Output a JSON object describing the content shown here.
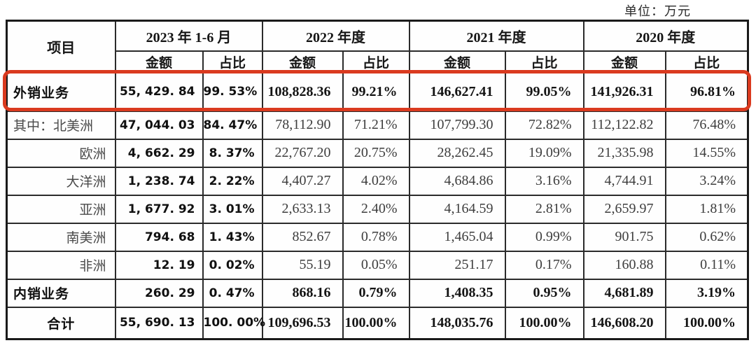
{
  "unit_label": "单位：万元",
  "annotation": {
    "color": "#da3a1f",
    "highlighted_row": "外销业务"
  },
  "table": {
    "item_header": "项目",
    "sub_headers": {
      "amount": "金额",
      "ratio": "占比"
    },
    "col_groups": [
      {
        "label": "2023 年 1-6 月"
      },
      {
        "label": "2022 年度"
      },
      {
        "label": "2021 年度"
      },
      {
        "label": "2020 年度"
      }
    ],
    "rows": [
      {
        "label": "外销业务",
        "label_align": "left",
        "style": "bold",
        "highlight": true,
        "values": [
          "55, 429. 84",
          "99. 53%",
          "108,828.36",
          "99.21%",
          "146,627.41",
          "99.05%",
          "141,926.31",
          "96.81%"
        ]
      },
      {
        "label": "其中：北美洲",
        "label_align": "left",
        "style": "regular",
        "values": [
          "47, 044. 03",
          "84. 47%",
          "78,112.90",
          "71.21%",
          "107,799.30",
          "72.82%",
          "112,122.82",
          "76.48%"
        ]
      },
      {
        "label": "欧洲",
        "label_align": "right",
        "style": "regular",
        "values": [
          "4, 662. 29",
          "8. 37%",
          "22,767.20",
          "20.75%",
          "28,262.45",
          "19.09%",
          "21,335.98",
          "14.55%"
        ]
      },
      {
        "label": "大洋洲",
        "label_align": "right",
        "style": "regular",
        "values": [
          "1, 238. 74",
          "2. 22%",
          "4,407.27",
          "4.02%",
          "4,684.86",
          "3.16%",
          "4,744.91",
          "3.24%"
        ]
      },
      {
        "label": "亚洲",
        "label_align": "right",
        "style": "regular",
        "values": [
          "1, 677. 92",
          "3. 01%",
          "2,633.13",
          "2.40%",
          "4,164.59",
          "2.81%",
          "2,659.97",
          "1.81%"
        ]
      },
      {
        "label": "南美洲",
        "label_align": "right",
        "style": "regular",
        "values": [
          "794. 68",
          "1. 43%",
          "852.67",
          "0.78%",
          "1,465.04",
          "0.99%",
          "901.75",
          "0.62%"
        ]
      },
      {
        "label": "非洲",
        "label_align": "right",
        "style": "regular",
        "values": [
          "12. 19",
          "0. 02%",
          "55.19",
          "0.05%",
          "251.17",
          "0.17%",
          "160.88",
          "0.11%"
        ]
      },
      {
        "label": "内销业务",
        "label_align": "left",
        "style": "bold",
        "values": [
          "260. 29",
          "0. 47%",
          "868.16",
          "0.79%",
          "1,408.35",
          "0.95%",
          "4,681.89",
          "3.19%"
        ]
      },
      {
        "label": "合计",
        "label_align": "center",
        "style": "bold",
        "values": [
          "55, 690. 13",
          "100. 00%",
          "109,696.53",
          "100.00%",
          "148,035.76",
          "100.00%",
          "146,608.20",
          "100.00%"
        ]
      }
    ]
  }
}
